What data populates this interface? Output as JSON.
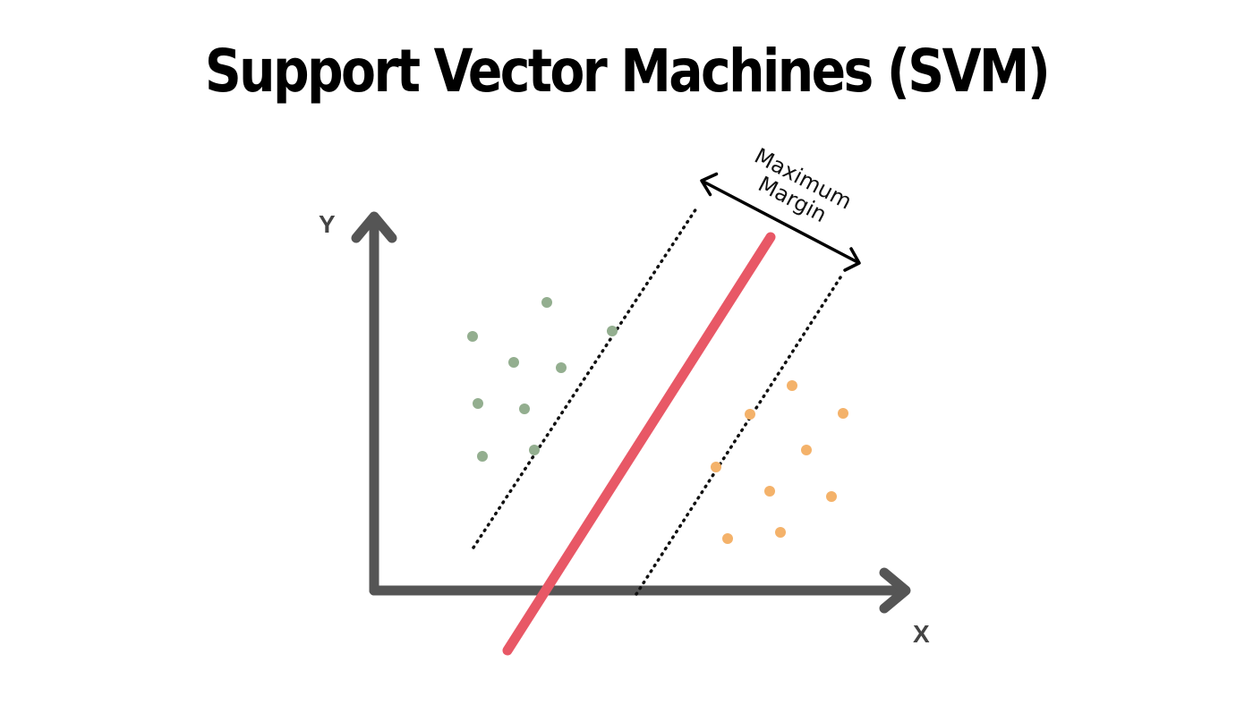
{
  "title": "Support Vector Machines (SVM)",
  "axes": {
    "x_label": "X",
    "y_label": "Y"
  },
  "margin_label": {
    "line1": "Maximum",
    "line2": "Margin"
  },
  "colors": {
    "axis": "#555555",
    "hyperplane": "#e85866",
    "margin_lines": "#111111",
    "class_a": "#93ae8f",
    "class_b": "#f4b26a"
  },
  "class_a_count": 10,
  "class_b_count": 10
}
